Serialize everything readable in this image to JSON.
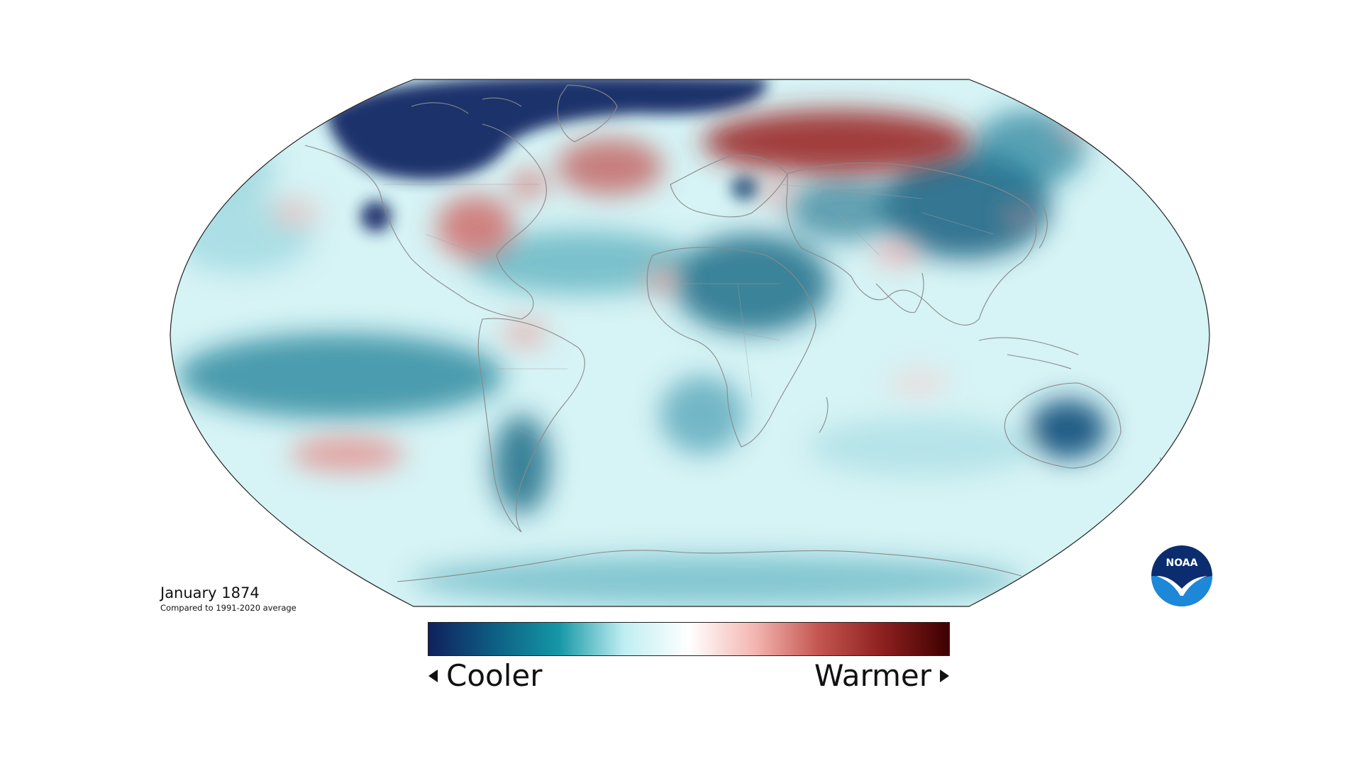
{
  "caption": {
    "title": "January 1874",
    "subtitle": "Compared to 1991-2020 average"
  },
  "legend": {
    "low_label": "Cooler",
    "high_label": "Warmer",
    "gradient_colors": [
      "#11205e",
      "#0d5e82",
      "#1597a6",
      "#bfeef2",
      "#ffffff",
      "#f4b7b2",
      "#c45550",
      "#8c1f1f",
      "#3f0000"
    ]
  },
  "logo": {
    "text": "NOAA",
    "icon": "noaa-logo-icon",
    "colors": [
      "#0b2d6f",
      "#1e88d8",
      "#ffffff"
    ]
  },
  "map": {
    "projection": "robinson",
    "colors": {
      "ocean_base": "#d6f3f5",
      "strong_cool": "#152a66",
      "cool": "#1c7f95",
      "mild_cool": "#7fcad3",
      "warm": "#e39a98",
      "strong_warm": "#9b2828",
      "coastline": "#8a8a8a",
      "outline": "#222222"
    }
  }
}
